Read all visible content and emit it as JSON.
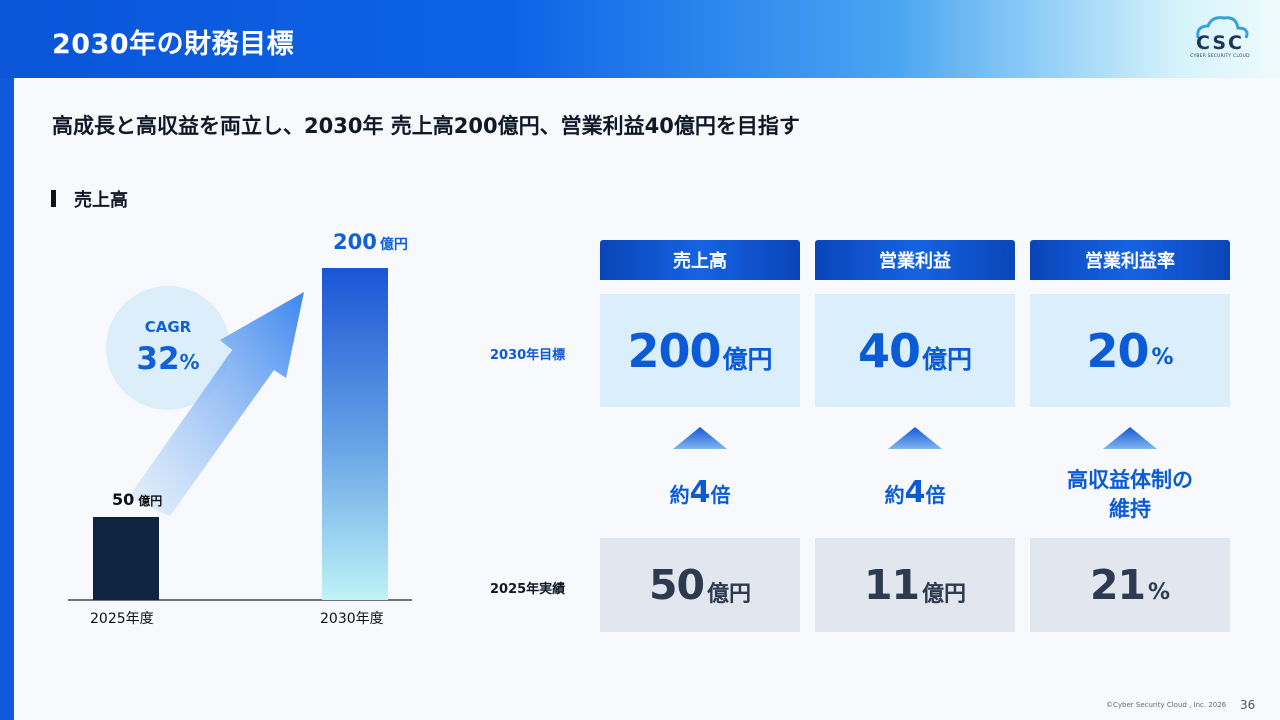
{
  "header": {
    "title": "2030年の財務目標",
    "logo_text": "CSC",
    "logo_sub": "CYBER SECURITY CLOUD"
  },
  "subtitle": "高成長と高収益を両立し、2030年 売上高200億円、営業利益40億円を目指す",
  "section_label": "売上高",
  "chart": {
    "cagr_label": "CAGR",
    "cagr_value": "32",
    "cagr_unit": "%",
    "bar1_value": "50",
    "bar1_unit": "億円",
    "bar2_value": "200",
    "bar2_unit": "億円",
    "cat1": "2025年度",
    "cat2": "2030年度"
  },
  "chart_data": {
    "type": "bar",
    "categories": [
      "2025年度",
      "2030年度"
    ],
    "values": [
      50,
      200
    ],
    "title": "",
    "xlabel": "",
    "ylabel": "",
    "ylim": [
      0,
      200
    ],
    "annotation": "CAGR 32%"
  },
  "table": {
    "headers": [
      "売上高",
      "営業利益",
      "営業利益率"
    ],
    "row_target_label": "2030年目標",
    "row_actual_label": "2025年実績",
    "targets": [
      {
        "value": "200",
        "unit": "億円"
      },
      {
        "value": "40",
        "unit": "億円"
      },
      {
        "value": "20",
        "unit": "%"
      }
    ],
    "multipliers": [
      {
        "prefix": "約",
        "num": "4",
        "suffix": "倍"
      },
      {
        "prefix": "約",
        "num": "4",
        "suffix": "倍"
      }
    ],
    "margin_note_line1": "高収益体制の",
    "margin_note_line2": "維持",
    "actuals": [
      {
        "value": "50",
        "unit": "億円"
      },
      {
        "value": "11",
        "unit": "億円"
      },
      {
        "value": "21",
        "unit": "%"
      }
    ]
  },
  "colors": {
    "accent": "#0b5ad6",
    "header_start": "#0a55d8",
    "bar_2025": "#0f2440",
    "target_bg": "#dbeefc",
    "actual_bg": "#e1e6ef"
  },
  "footer": {
    "copyright": "©Cyber Security Cloud , Inc. 2026",
    "page": "36"
  }
}
